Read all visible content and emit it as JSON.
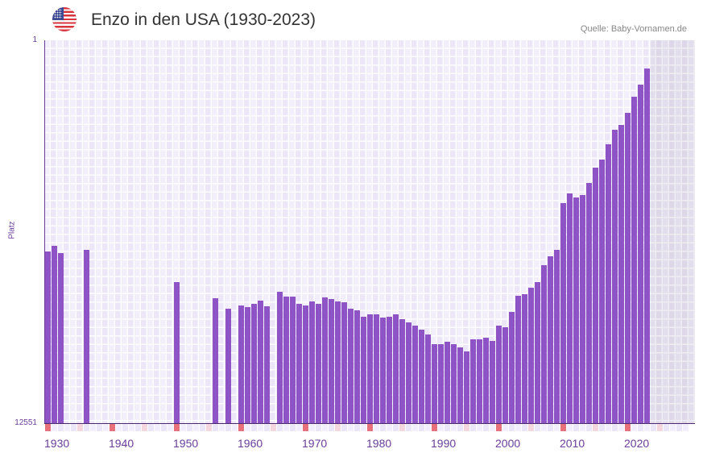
{
  "header": {
    "title": "Enzo in den USA (1930-2023)",
    "source": "Quelle: Baby-Vornamen.de",
    "flag_icon": "us-flag-icon"
  },
  "colors": {
    "bar": "#8e54c6",
    "decade_marker": "#e8707a",
    "half_decade_marker": "#f5d5de",
    "axis_text": "#6a3d9a"
  },
  "chart_data": {
    "type": "bar",
    "title": "Enzo in den USA (1930-2023)",
    "ylabel": "Platz",
    "xlabel": "",
    "y_scale": "log-reversed",
    "ylim": [
      12551,
      1
    ],
    "ytick_labels": [
      "1",
      "12551"
    ],
    "xtick_labels": [
      "1930",
      "1940",
      "1950",
      "1960",
      "1970",
      "1980",
      "1990",
      "2000",
      "2010",
      "2020"
    ],
    "x_range": [
      1930,
      2030
    ],
    "years": [
      1930,
      1931,
      1932,
      1933,
      1934,
      1935,
      1936,
      1937,
      1938,
      1939,
      1940,
      1941,
      1942,
      1943,
      1944,
      1945,
      1946,
      1947,
      1948,
      1949,
      1950,
      1951,
      1952,
      1953,
      1954,
      1955,
      1956,
      1957,
      1958,
      1959,
      1960,
      1961,
      1962,
      1963,
      1964,
      1965,
      1966,
      1967,
      1968,
      1969,
      1970,
      1971,
      1972,
      1973,
      1974,
      1975,
      1976,
      1977,
      1978,
      1979,
      1980,
      1981,
      1982,
      1983,
      1984,
      1985,
      1986,
      1987,
      1988,
      1989,
      1990,
      1991,
      1992,
      1993,
      1994,
      1995,
      1996,
      1997,
      1998,
      1999,
      2000,
      2001,
      2002,
      2003,
      2004,
      2005,
      2006,
      2007,
      2008,
      2009,
      2010,
      2011,
      2012,
      2013,
      2014,
      2015,
      2016,
      2017,
      2018,
      2019,
      2020,
      2021,
      2022,
      2023
    ],
    "ranks": [
      182,
      159,
      190,
      null,
      null,
      null,
      175,
      null,
      null,
      null,
      null,
      null,
      null,
      null,
      null,
      null,
      null,
      null,
      null,
      null,
      388,
      null,
      null,
      null,
      null,
      null,
      577,
      null,
      747,
      null,
      690,
      718,
      663,
      612,
      703,
      null,
      492,
      554,
      554,
      663,
      690,
      625,
      663,
      565,
      589,
      625,
      637,
      747,
      777,
      910,
      859,
      859,
      929,
      910,
      859,
      967,
      1047,
      1133,
      1251,
      1410,
      1790,
      1790,
      1686,
      1790,
      1936,
      2138,
      1589,
      1589,
      1527,
      1652,
      1133,
      1180,
      809,
      543,
      522,
      445,
      388,
      255,
      205,
      175,
      55,
      44,
      48,
      45,
      34,
      23,
      19,
      13,
      9,
      8,
      6,
      4,
      3,
      2
    ]
  }
}
